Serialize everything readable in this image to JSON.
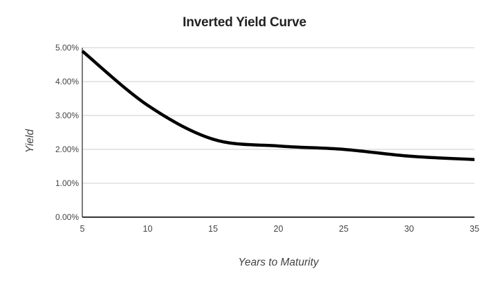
{
  "chart_data": {
    "type": "line",
    "title": "Inverted Yield Curve",
    "xlabel": "Years to Maturity",
    "ylabel": "Yield",
    "x": [
      5,
      10,
      15,
      20,
      25,
      30,
      35
    ],
    "y": [
      4.9,
      3.3,
      2.3,
      2.1,
      2.0,
      1.8,
      1.7
    ],
    "y_unit": "percent",
    "xlim": [
      5,
      35
    ],
    "ylim": [
      0,
      5
    ],
    "x_ticks": [
      5,
      10,
      15,
      20,
      25,
      30,
      35
    ],
    "x_tick_labels": [
      "5",
      "10",
      "15",
      "20",
      "25",
      "30",
      "35"
    ],
    "y_ticks": [
      0,
      1,
      2,
      3,
      4,
      5
    ],
    "y_tick_labels": [
      "0.00%",
      "1.00%",
      "2.00%",
      "3.00%",
      "4.00%",
      "5.00%"
    ],
    "grid": "horizontal",
    "smooth": true,
    "legend": "none",
    "colors": {
      "line": "#000000",
      "gridline": "#cccccc",
      "axis_line": "#333333",
      "tick_label": "#444444",
      "title": "#212121",
      "axis_title": "#424242",
      "background": "#ffffff"
    },
    "line_width": 4.5
  }
}
